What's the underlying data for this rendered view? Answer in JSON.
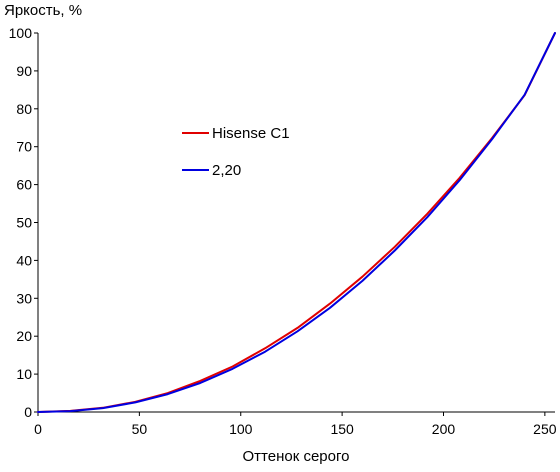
{
  "chart_data": {
    "type": "line",
    "xlabel": "Оттенок серого",
    "ylabel": "Яркость, %",
    "xlim": [
      0,
      255
    ],
    "ylim": [
      0,
      100
    ],
    "x_ticks": [
      0,
      50,
      100,
      150,
      200,
      250
    ],
    "y_ticks": [
      0,
      10,
      20,
      30,
      40,
      50,
      60,
      70,
      80,
      90,
      100
    ],
    "grid": false,
    "legend_position": "left-center",
    "series": [
      {
        "name": "Hisense C1",
        "color": "#e00000",
        "x": [
          0,
          16,
          32,
          48,
          64,
          80,
          96,
          112,
          128,
          144,
          160,
          176,
          192,
          208,
          224,
          240,
          255
        ],
        "y": [
          0,
          0.3,
          1.1,
          2.7,
          5.0,
          8.2,
          12.0,
          16.8,
          22.2,
          28.6,
          35.7,
          43.6,
          52.3,
          61.8,
          72.3,
          83.6,
          100
        ]
      },
      {
        "name": "2,20",
        "color": "#0000e0",
        "x": [
          0,
          16,
          32,
          48,
          64,
          80,
          96,
          112,
          128,
          144,
          160,
          176,
          192,
          208,
          224,
          240,
          255
        ],
        "y": [
          0,
          0.23,
          1.04,
          2.52,
          4.71,
          7.66,
          11.4,
          15.9,
          21.3,
          27.5,
          34.6,
          42.6,
          51.4,
          61.2,
          72.0,
          83.7,
          100
        ]
      }
    ]
  }
}
